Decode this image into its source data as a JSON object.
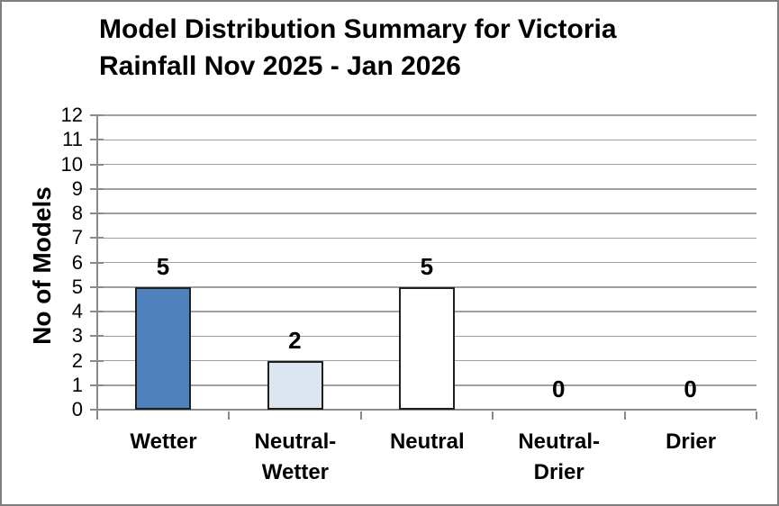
{
  "frame": {
    "background": "#ffffff",
    "border_color": "#7f7f7f"
  },
  "chart_data": {
    "type": "bar",
    "title": "Model Distribution Summary for Victoria Rainfall Nov 2025 - Jan 2026",
    "title_lines": [
      "Model Distribution Summary for Victoria",
      "Rainfall Nov 2025 - Jan 2026"
    ],
    "ylabel": "No of Models",
    "xlabel": "",
    "categories": [
      "Wetter",
      "Neutral-Wetter",
      "Neutral",
      "Neutral-Drier",
      "Drier"
    ],
    "category_label_lines": [
      [
        "Wetter"
      ],
      [
        "Neutral-",
        "Wetter"
      ],
      [
        "Neutral"
      ],
      [
        "Neutral-",
        "Drier"
      ],
      [
        "Drier"
      ]
    ],
    "values": [
      5,
      2,
      5,
      0,
      0
    ],
    "data_labels": [
      "5",
      "2",
      "5",
      "0",
      "0"
    ],
    "bar_fill_colors": [
      "#4f81bd",
      "#dce6f1",
      "#ffffff",
      "#ffffff",
      "#ffffff"
    ],
    "bar_border_color": "#1f1f1f",
    "ylim": [
      0,
      12
    ],
    "ytick_step": 1,
    "ytick_labels": [
      "0",
      "1",
      "2",
      "3",
      "4",
      "5",
      "6",
      "7",
      "8",
      "9",
      "10",
      "11",
      "12"
    ],
    "grid": true,
    "gridline_color": "#a0a0a0",
    "axis_color": "#8a8a8a",
    "legend": "none",
    "text_color": "#000000"
  }
}
